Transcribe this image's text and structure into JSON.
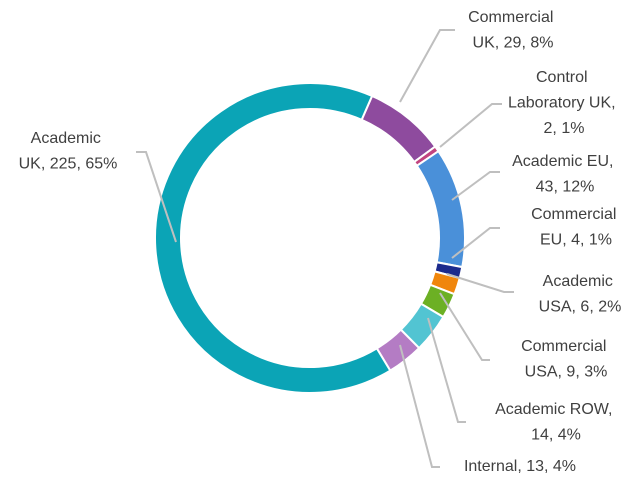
{
  "chart_data": {
    "type": "donut",
    "categories": [
      "Commercial UK",
      "Control Laboratory UK",
      "Academic EU",
      "Commercial EU",
      "Academic USA",
      "Commercial USA",
      "Academic ROW",
      "Internal",
      "Academic UK"
    ],
    "values": [
      29,
      2,
      43,
      4,
      6,
      9,
      14,
      13,
      225
    ],
    "value_labels": [
      "Commercial UK, 29, 8%",
      "Control Laboratory UK, 2, 1%",
      "Academic EU, 43, 12%",
      "Commercial EU, 4, 1%",
      "Academic USA, 6, 2%",
      "Commercial USA, 9, 3%",
      "Academic ROW, 14, 4%",
      "Internal, 13, 4%",
      "Academic UK, 225, 65%"
    ],
    "colors": [
      "#8e4b9e",
      "#c2447f",
      "#4a90d9",
      "#1c2a8c",
      "#f0860c",
      "#6cb024",
      "#52c4d2",
      "#b47cc4",
      "#0ba4b6"
    ]
  }
}
